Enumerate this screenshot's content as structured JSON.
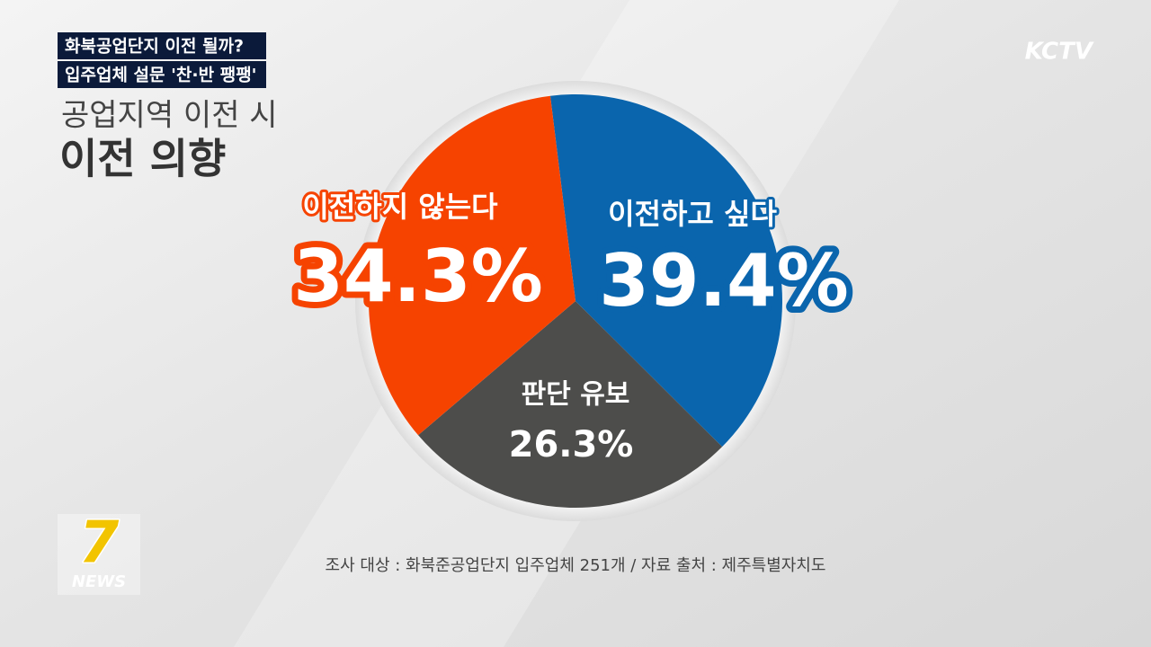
{
  "header": {
    "line1": "화북공업단지 이전 될까?",
    "line2": "입주업체 설문 '찬·반 팽팽'"
  },
  "logo": "KCTV",
  "news_logo": {
    "number": "7",
    "word": "NEWS"
  },
  "chart_data": {
    "type": "pie",
    "title": "공업지역 이전 시",
    "subtitle": "이전 의향",
    "categories": [
      "이전하고 싶다",
      "판단 유보",
      "이전하지 않는다"
    ],
    "values": [
      39.4,
      26.3,
      34.3
    ],
    "value_labels": [
      "39.4%",
      "26.3%",
      "34.3%"
    ],
    "colors": [
      "#0a65ad",
      "#4d4d4b",
      "#f64300"
    ]
  },
  "source": "조사 대상 : 화북준공업단지 입주업체 251개 / 자료 출처 : 제주특별자치도"
}
